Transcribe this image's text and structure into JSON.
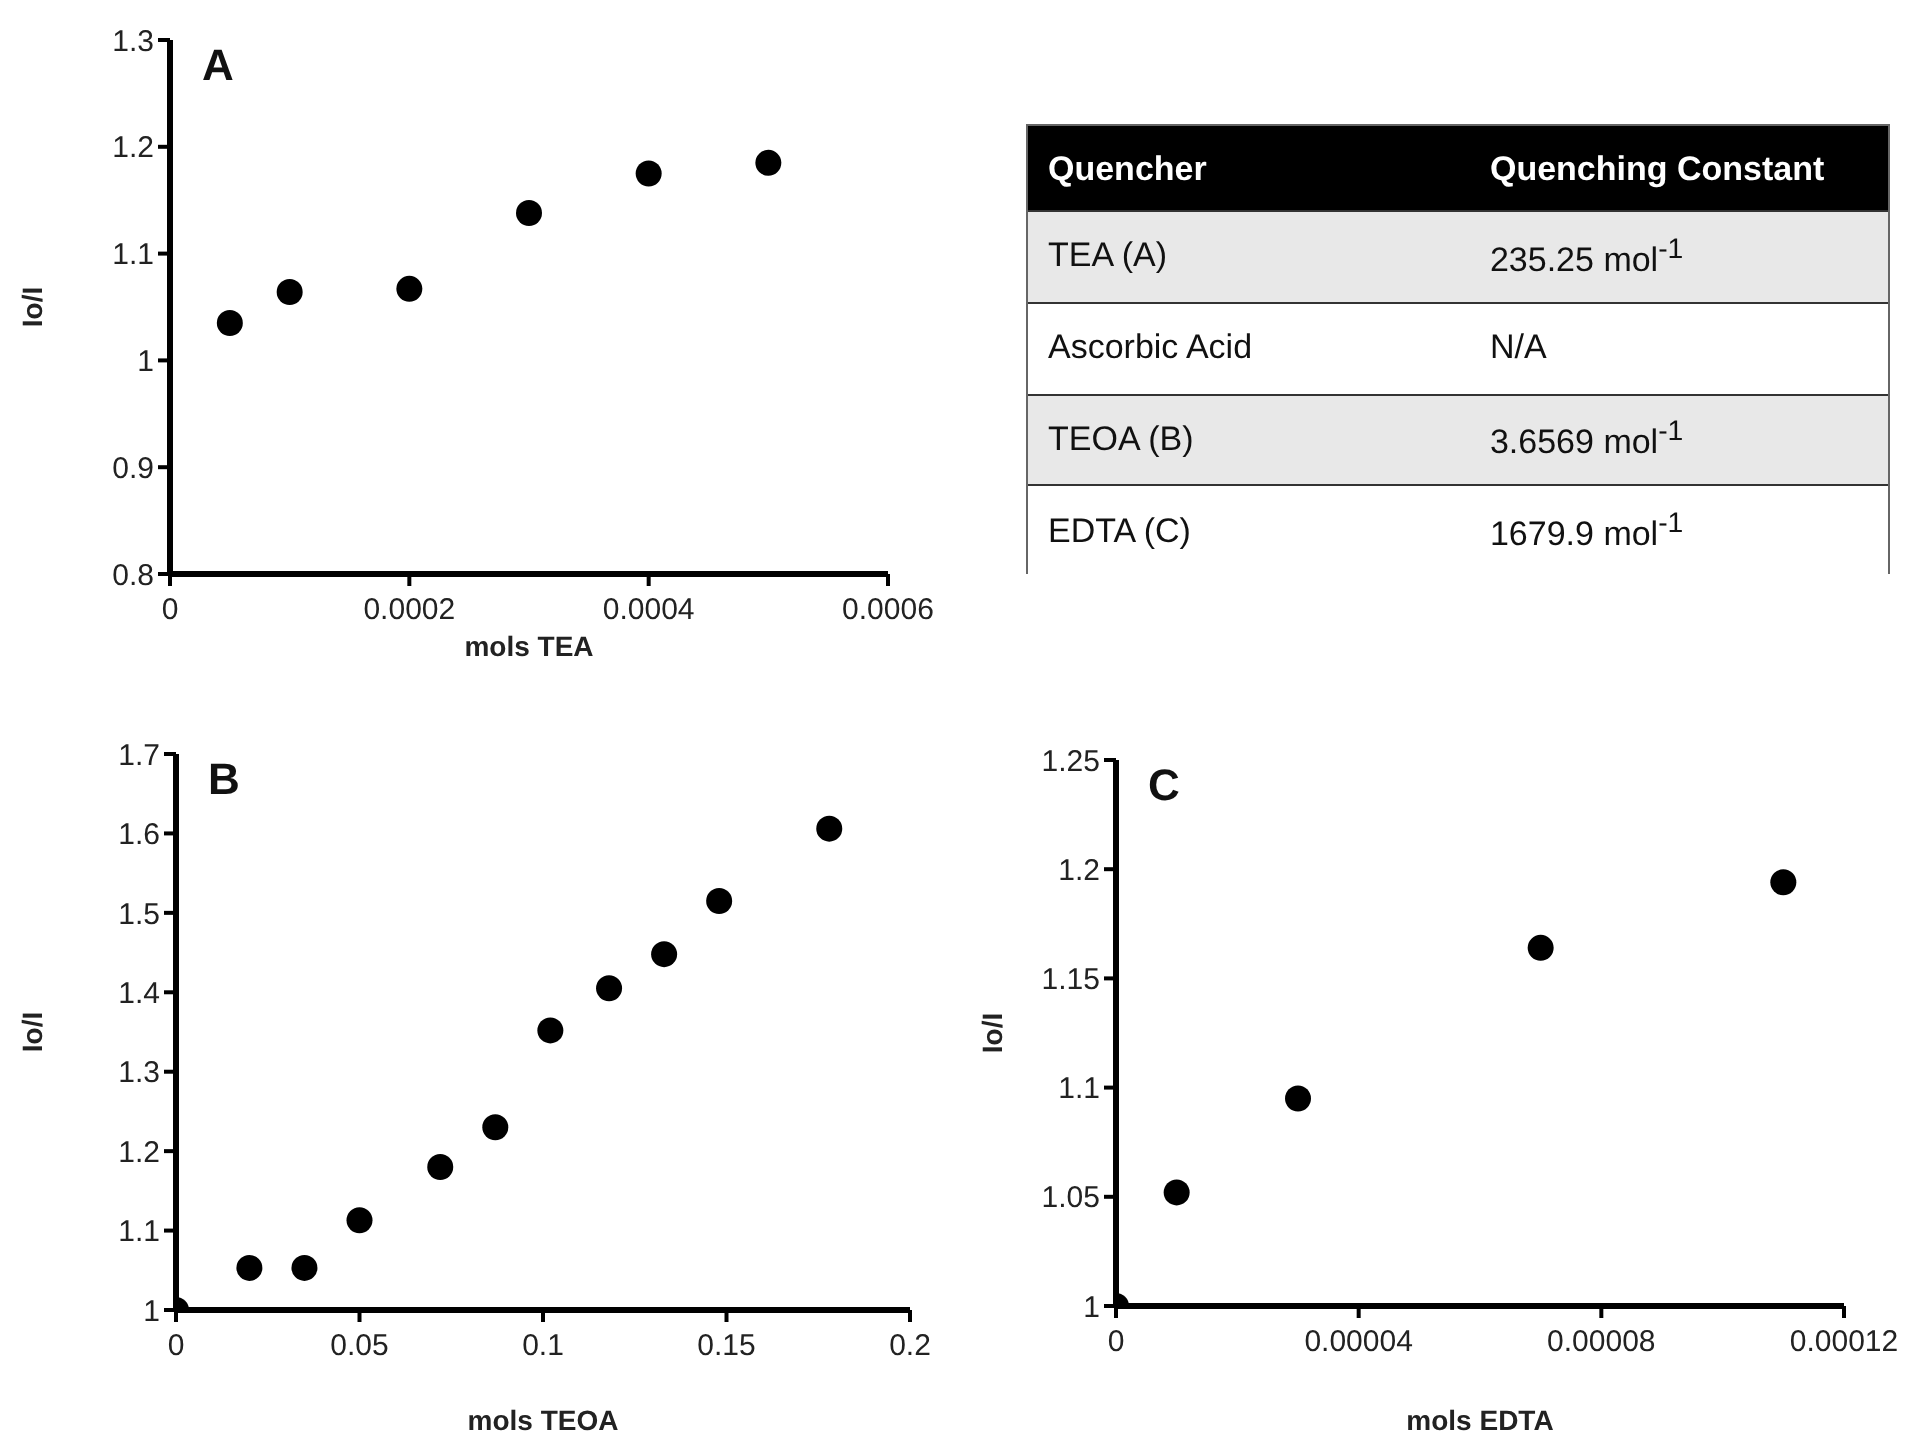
{
  "chart_data": [
    {
      "type": "scatter",
      "title": "A",
      "xlabel": "mols TEA",
      "ylabel": "Io/I",
      "marker": "circle",
      "x": [
        5e-05,
        0.0001,
        0.0002,
        0.0003,
        0.0004,
        0.0005
      ],
      "series": [
        {
          "color": "#000000",
          "values": [
            1.035,
            1.064,
            1.067,
            1.138,
            1.175,
            1.185
          ]
        }
      ],
      "xlim": [
        0,
        0.0006
      ],
      "xticks": [
        0,
        0.0002,
        0.0004,
        0.0006
      ],
      "ylim": [
        0.8,
        1.3
      ],
      "yticks": [
        0.8,
        0.9,
        1,
        1.1,
        1.2,
        1.3
      ]
    },
    {
      "type": "other",
      "categories": [
        "Quencher",
        "Quenching Constant"
      ],
      "y_categories": [
        "TEA (A)",
        "Ascorbic Acid",
        "TEOA (B)",
        "EDTA (C)"
      ],
      "cell_labels": [
        [
          "235.25 mol$^{-1}$"
        ],
        [
          "N/A"
        ],
        [
          "3.6569 mol$^{-1}$"
        ],
        [
          "1679.9 mol$^{-1}$"
        ]
      ]
    },
    {
      "type": "scatter",
      "title": "B",
      "xlabel": "mols TEOA",
      "ylabel": "Io/I",
      "marker": "circle",
      "x": [
        0,
        0.02,
        0.035,
        0.05,
        0.072,
        0.087,
        0.102,
        0.118,
        0.133,
        0.148,
        0.178
      ],
      "series": [
        {
          "color": "#000000",
          "values": [
            1.0,
            1.053,
            1.053,
            1.113,
            1.18,
            1.23,
            1.352,
            1.405,
            1.448,
            1.515,
            1.606
          ]
        }
      ],
      "xlim": [
        0,
        0.2
      ],
      "xticks": [
        0,
        0.05,
        0.1,
        0.15,
        0.2
      ],
      "ylim": [
        1,
        1.7
      ],
      "yticks": [
        1,
        1.1,
        1.2,
        1.3,
        1.4,
        1.5,
        1.6,
        1.7
      ]
    },
    {
      "type": "scatter",
      "title": "C",
      "xlabel": "mols EDTA",
      "ylabel": "Io/I",
      "marker": "circle",
      "x": [
        0,
        1e-05,
        3e-05,
        7e-05,
        0.00011
      ],
      "series": [
        {
          "color": "#000000",
          "values": [
            1.0,
            1.052,
            1.095,
            1.164,
            1.194
          ]
        }
      ],
      "xlim": [
        0,
        0.00012
      ],
      "xticks": [
        0,
        {
          "value": 4e-05,
          "label": "0.00004"
        },
        {
          "value": 8e-05,
          "label": "0.00008"
        },
        {
          "value": 0.00012,
          "label": "0.00012"
        }
      ],
      "ylim": [
        1,
        1.25
      ],
      "yticks": [
        1,
        1.05,
        1.1,
        1.15,
        1.2,
        1.25
      ]
    }
  ]
}
